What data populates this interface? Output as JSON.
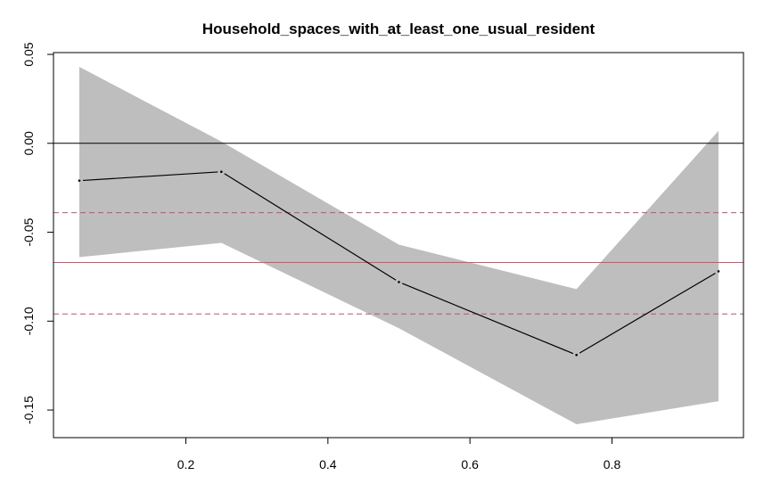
{
  "chart_data": {
    "type": "line",
    "title": "Household_spaces_with_at_least_one_usual_resident",
    "xlabel": "",
    "ylabel": "",
    "xlim": [
      0.05,
      0.95
    ],
    "ylim": [
      -0.158,
      0.043
    ],
    "x_ticks": [
      0.2,
      0.4,
      0.6,
      0.8
    ],
    "x_tick_labels": [
      "0.2",
      "0.4",
      "0.6",
      "0.8"
    ],
    "y_ticks": [
      0.05,
      0.0,
      -0.05,
      -0.1,
      -0.15
    ],
    "y_tick_labels": [
      "0.05",
      "0.00",
      "-0.05",
      "-0.10",
      "-0.15"
    ],
    "x": [
      0.05,
      0.25,
      0.5,
      0.75,
      0.95
    ],
    "series": [
      {
        "values": [
          -0.021,
          -0.016,
          -0.078,
          -0.119,
          -0.072
        ]
      }
    ],
    "band": {
      "upper": [
        0.043,
        0.001,
        -0.057,
        -0.082,
        0.007
      ],
      "lower": [
        -0.064,
        -0.056,
        -0.104,
        -0.158,
        -0.145
      ]
    },
    "reference_lines": [
      {
        "value": 0.0,
        "color": "#000000",
        "style": "solid"
      },
      {
        "value": -0.067,
        "color": "#e0506a",
        "style": "solid"
      },
      {
        "value": -0.039,
        "color": "#c05070",
        "style": "dashed"
      },
      {
        "value": -0.096,
        "color": "#c05070",
        "style": "dashed"
      }
    ],
    "colors": {
      "band": "#bebebe",
      "line": "#000000"
    },
    "grid": false,
    "legend": "none"
  }
}
